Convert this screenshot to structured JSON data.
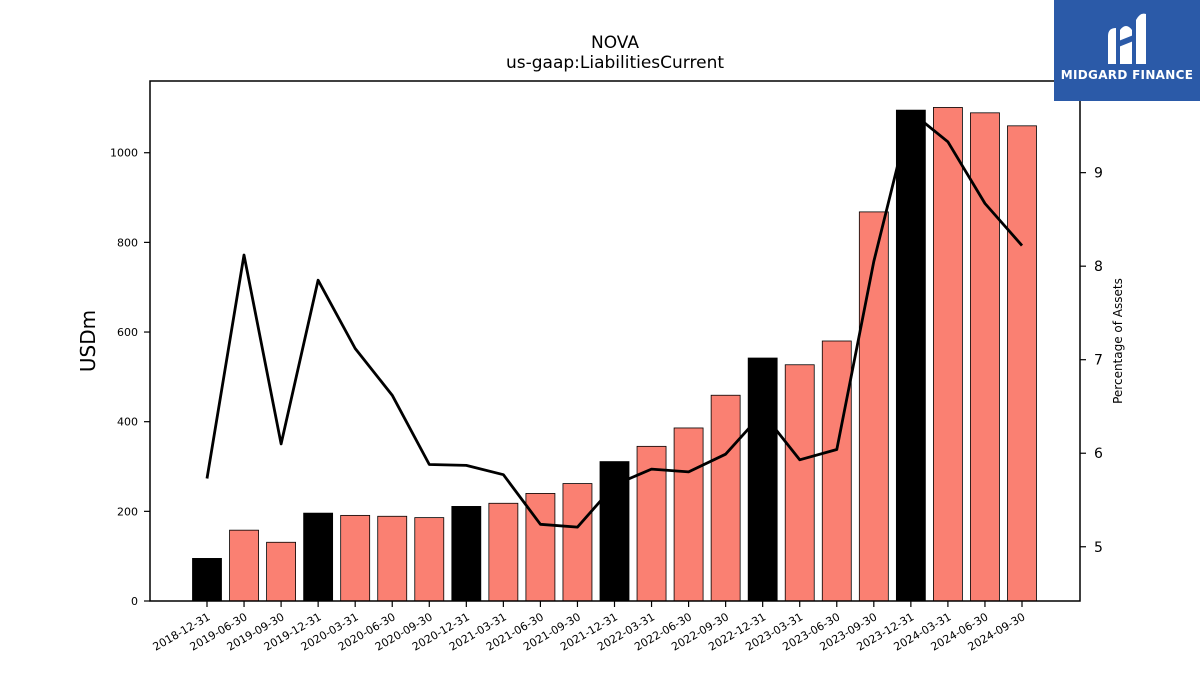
{
  "chart_data": {
    "type": "bar",
    "title": "NOVA",
    "subtitle": "us-gaap:LiabilitiesCurrent",
    "ylabel": "USDm",
    "y2label": "Percentage of Assets",
    "ylim": [
      0,
      1160
    ],
    "y2lim": [
      4.42,
      9.98
    ],
    "yticks": [
      0,
      200,
      400,
      600,
      800,
      1000
    ],
    "y2ticks": [
      5,
      6,
      7,
      8,
      9
    ],
    "categories": [
      "2018-12-31",
      "2019-06-30",
      "2019-09-30",
      "2019-12-31",
      "2020-03-31",
      "2020-06-30",
      "2020-09-30",
      "2020-12-31",
      "2021-03-31",
      "2021-06-30",
      "2021-09-30",
      "2021-12-31",
      "2022-03-31",
      "2022-06-30",
      "2022-09-30",
      "2022-12-31",
      "2023-03-31",
      "2023-06-30",
      "2023-09-30",
      "2023-12-31",
      "2024-03-31",
      "2024-06-30",
      "2024-09-30"
    ],
    "series": [
      {
        "type": "bar",
        "axis": "left",
        "values": [
          95,
          158,
          131,
          196,
          191,
          189,
          186,
          211,
          218,
          240,
          262,
          311,
          345,
          386,
          459,
          542,
          527,
          580,
          868,
          1095,
          1101,
          1089,
          1060
        ],
        "colors": [
          "#000000",
          "#fa8072",
          "#fa8072",
          "#000000",
          "#fa8072",
          "#fa8072",
          "#fa8072",
          "#000000",
          "#fa8072",
          "#fa8072",
          "#fa8072",
          "#000000",
          "#fa8072",
          "#fa8072",
          "#fa8072",
          "#000000",
          "#fa8072",
          "#fa8072",
          "#fa8072",
          "#000000",
          "#fa8072",
          "#fa8072",
          "#fa8072"
        ]
      },
      {
        "type": "line",
        "axis": "right",
        "color": "#000000",
        "values": [
          5.73,
          8.12,
          6.1,
          7.85,
          7.12,
          6.62,
          5.88,
          5.87,
          5.77,
          5.24,
          5.21,
          5.66,
          5.83,
          5.8,
          5.99,
          6.43,
          5.93,
          6.04,
          8.05,
          9.65,
          9.33,
          8.67,
          8.22
        ]
      }
    ],
    "grid": false,
    "legend": "none"
  },
  "logo": {
    "text": "MIDGARD FINANCE",
    "bg_color": "#2b5aa8"
  }
}
